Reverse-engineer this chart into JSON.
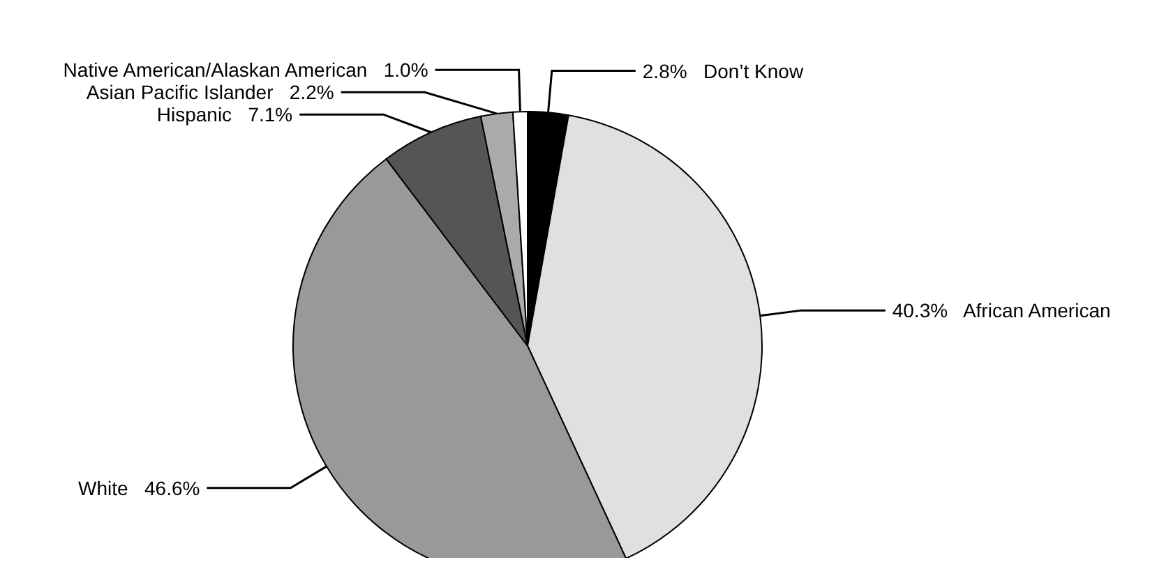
{
  "chart_data": {
    "type": "pie",
    "categories": [
      "Don’t Know",
      "African American",
      "White",
      "Hispanic",
      "Asian Pacific Islander",
      "Native American/Alaskan American"
    ],
    "values": [
      2.8,
      40.3,
      46.6,
      7.1,
      2.2,
      1.0
    ],
    "value_labels": [
      "2.8%",
      "40.3%",
      "46.6%",
      "7.1%",
      "2.2%",
      "1.0%"
    ],
    "colors": [
      "#000000",
      "#e0e0e0",
      "#999999",
      "#555555",
      "#aaaaaa",
      "#ffffff"
    ],
    "legend": false
  }
}
